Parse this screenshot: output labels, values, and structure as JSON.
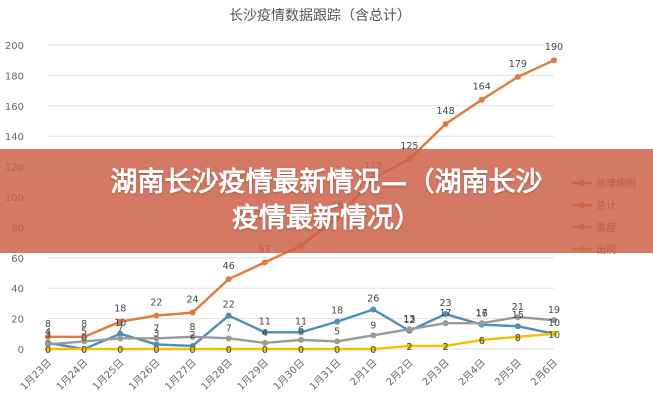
{
  "banner": {
    "line1": "湖南长沙疫情最新情况—（湖南长沙",
    "line2": "疫情最新情况）"
  },
  "chart_data": {
    "type": "line",
    "title": "长沙疫情数据跟踪（含总计）",
    "categories": [
      "1月23日",
      "1月24日",
      "1月25日",
      "1月26日",
      "1月27日",
      "1月28日",
      "1月29日",
      "1月30日",
      "1月31日",
      "2月1日",
      "2月2日",
      "2月3日",
      "2月4日",
      "2月5日",
      "2月6日"
    ],
    "ylim": [
      0,
      200
    ],
    "yticks": [
      0,
      20,
      40,
      60,
      80,
      100,
      120,
      140,
      160,
      180,
      200
    ],
    "grid": true,
    "legend": "right",
    "series": [
      {
        "name": "新增病例",
        "color": "#4a8fb8",
        "values": [
          4,
          0,
          10,
          3,
          2,
          22,
          11,
          11,
          18,
          26,
          12,
          23,
          16,
          15,
          10
        ],
        "labels": [
          "4",
          "0",
          "10",
          "3",
          "2",
          "22",
          "11",
          "11",
          "18",
          "26",
          "12",
          "23",
          "16",
          "15",
          "10"
        ]
      },
      {
        "name": "总计",
        "color": "#e07b39",
        "values": [
          8,
          8,
          18,
          22,
          24,
          46,
          57,
          68,
          86,
          112,
          125,
          148,
          164,
          179,
          190
        ],
        "labels": [
          "8",
          "8",
          "18",
          "22",
          "24",
          "46",
          "57",
          "",
          "86",
          "112",
          "125",
          "148",
          "164",
          "179",
          "190"
        ]
      },
      {
        "name": "重症",
        "color": "#9a9a9a",
        "values": [
          3,
          5,
          7,
          7,
          8,
          7,
          4,
          6,
          5,
          9,
          13,
          17,
          17,
          21,
          19
        ],
        "labels": [
          "3",
          "5",
          "7",
          "7",
          "8",
          "7",
          "4",
          "6",
          "5",
          "9",
          "13",
          "17",
          "17",
          "21",
          "19"
        ]
      },
      {
        "name": "出院",
        "color": "#f3c100",
        "values": [
          0,
          0,
          0,
          0,
          0,
          0,
          0,
          0,
          0,
          0,
          2,
          2,
          6,
          8,
          10
        ],
        "labels": [
          "0",
          "0",
          "0",
          "0",
          "0",
          "0",
          "0",
          "0",
          "0",
          "0",
          "2",
          "2",
          "6",
          "8",
          "10"
        ]
      }
    ]
  }
}
